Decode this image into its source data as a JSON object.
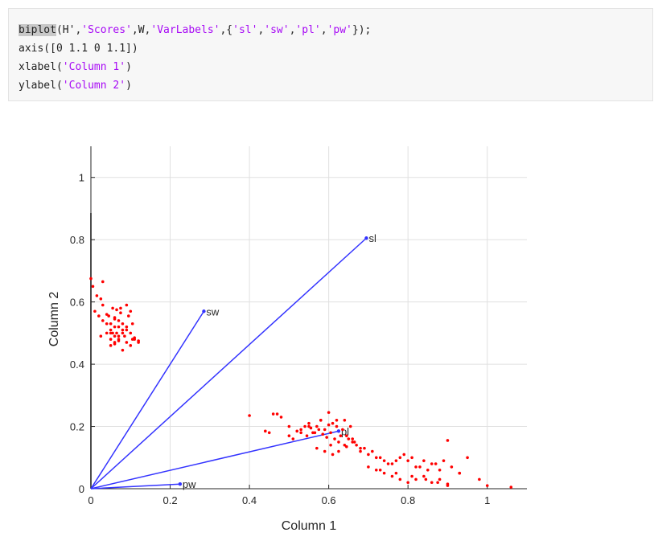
{
  "code": {
    "lines": [
      [
        {
          "t": "biplot",
          "k": "hl"
        },
        {
          "t": "(H',",
          "k": "plain"
        },
        {
          "t": "'Scores'",
          "k": "str"
        },
        {
          "t": ",W,",
          "k": "plain"
        },
        {
          "t": "'VarLabels'",
          "k": "str"
        },
        {
          "t": ",{",
          "k": "plain"
        },
        {
          "t": "'sl'",
          "k": "str"
        },
        {
          "t": ",",
          "k": "plain"
        },
        {
          "t": "'sw'",
          "k": "str"
        },
        {
          "t": ",",
          "k": "plain"
        },
        {
          "t": "'pl'",
          "k": "str"
        },
        {
          "t": ",",
          "k": "plain"
        },
        {
          "t": "'pw'",
          "k": "str"
        },
        {
          "t": "});",
          "k": "plain"
        }
      ],
      [
        {
          "t": "axis([0 1.1 0 1.1])",
          "k": "plain"
        }
      ],
      [
        {
          "t": "xlabel(",
          "k": "plain"
        },
        {
          "t": "'Column 1'",
          "k": "str"
        },
        {
          "t": ")",
          "k": "plain"
        }
      ],
      [
        {
          "t": "ylabel(",
          "k": "plain"
        },
        {
          "t": "'Column 2'",
          "k": "str"
        },
        {
          "t": ")",
          "k": "plain"
        }
      ]
    ]
  },
  "chart_data": {
    "type": "scatter",
    "title": "",
    "xlabel": "Column 1",
    "ylabel": "Column 2",
    "xlim": [
      0,
      1.1
    ],
    "ylim": [
      0,
      1.1
    ],
    "xticks": [
      0,
      0.2,
      0.4,
      0.6,
      0.8,
      1
    ],
    "yticks": [
      0,
      0.2,
      0.4,
      0.6,
      0.8,
      1
    ],
    "xtick_labels": [
      "0",
      "0.2",
      "0.4",
      "0.6",
      "0.8",
      "1"
    ],
    "ytick_labels": [
      "0",
      "0.2",
      "0.4",
      "0.6",
      "0.8",
      "1"
    ],
    "grid": true,
    "colors": {
      "vectors": "#3333ff",
      "scores": "#ff0000",
      "axes": "#262626",
      "grid": "#e0e0e0",
      "text": "#262626"
    },
    "vectors": [
      {
        "name": "sl",
        "x": 0.695,
        "y": 0.805
      },
      {
        "name": "sw",
        "x": 0.285,
        "y": 0.57
      },
      {
        "name": "pl",
        "x": 0.625,
        "y": 0.185
      },
      {
        "name": "pw",
        "x": 0.225,
        "y": 0.015
      }
    ],
    "scores": {
      "x": [
        0.0,
        0.005,
        0.01,
        0.025,
        0.03,
        0.015,
        0.02,
        0.03,
        0.04,
        0.045,
        0.05,
        0.055,
        0.06,
        0.065,
        0.05,
        0.06,
        0.07,
        0.075,
        0.03,
        0.04,
        0.05,
        0.06,
        0.07,
        0.08,
        0.09,
        0.04,
        0.05,
        0.06,
        0.065,
        0.07,
        0.08,
        0.085,
        0.09,
        0.1,
        0.105,
        0.11,
        0.05,
        0.06,
        0.07,
        0.08,
        0.09,
        0.1,
        0.11,
        0.12,
        0.025,
        0.06,
        0.075,
        0.09,
        0.1,
        0.105,
        0.095,
        0.08,
        0.07,
        0.055,
        0.12,
        0.4,
        0.44,
        0.46,
        0.47,
        0.48,
        0.5,
        0.51,
        0.52,
        0.53,
        0.54,
        0.55,
        0.56,
        0.57,
        0.58,
        0.59,
        0.6,
        0.61,
        0.62,
        0.63,
        0.64,
        0.65,
        0.53,
        0.545,
        0.555,
        0.565,
        0.575,
        0.585,
        0.595,
        0.605,
        0.615,
        0.625,
        0.635,
        0.645,
        0.655,
        0.665,
        0.6,
        0.62,
        0.64,
        0.66,
        0.68,
        0.7,
        0.72,
        0.74,
        0.76,
        0.78,
        0.8,
        0.82,
        0.84,
        0.86,
        0.88,
        0.9,
        0.67,
        0.69,
        0.71,
        0.73,
        0.75,
        0.77,
        0.79,
        0.81,
        0.83,
        0.85,
        0.87,
        0.89,
        0.91,
        0.93,
        0.95,
        0.72,
        0.74,
        0.76,
        0.78,
        0.8,
        0.82,
        0.84,
        0.86,
        0.88,
        0.9,
        0.98,
        1.0,
        1.06,
        0.57,
        0.59,
        0.61,
        0.66,
        0.68,
        0.55,
        0.5,
        0.45,
        0.58,
        0.605,
        0.625,
        0.645,
        0.7,
        0.73,
        0.77,
        0.81,
        0.845,
        0.875,
        0.9,
        0.93
      ],
      "y": [
        0.675,
        0.65,
        0.57,
        0.61,
        0.665,
        0.62,
        0.555,
        0.59,
        0.56,
        0.555,
        0.53,
        0.58,
        0.55,
        0.575,
        0.51,
        0.545,
        0.52,
        0.565,
        0.54,
        0.53,
        0.5,
        0.52,
        0.54,
        0.51,
        0.52,
        0.5,
        0.48,
        0.49,
        0.5,
        0.48,
        0.5,
        0.49,
        0.51,
        0.5,
        0.48,
        0.485,
        0.46,
        0.47,
        0.475,
        0.445,
        0.47,
        0.46,
        0.48,
        0.475,
        0.49,
        0.465,
        0.58,
        0.59,
        0.57,
        0.53,
        0.555,
        0.53,
        0.49,
        0.5,
        0.47,
        0.235,
        0.185,
        0.24,
        0.24,
        0.23,
        0.17,
        0.16,
        0.185,
        0.19,
        0.2,
        0.21,
        0.18,
        0.2,
        0.22,
        0.19,
        0.245,
        0.21,
        0.2,
        0.17,
        0.22,
        0.16,
        0.18,
        0.17,
        0.195,
        0.18,
        0.19,
        0.175,
        0.165,
        0.18,
        0.16,
        0.15,
        0.19,
        0.17,
        0.2,
        0.15,
        0.205,
        0.22,
        0.14,
        0.16,
        0.12,
        0.11,
        0.1,
        0.09,
        0.08,
        0.1,
        0.09,
        0.07,
        0.09,
        0.08,
        0.06,
        0.155,
        0.14,
        0.13,
        0.12,
        0.1,
        0.08,
        0.09,
        0.11,
        0.1,
        0.07,
        0.06,
        0.08,
        0.09,
        0.07,
        0.05,
        0.1,
        0.06,
        0.05,
        0.04,
        0.03,
        0.02,
        0.03,
        0.04,
        0.02,
        0.03,
        0.01,
        0.03,
        0.01,
        0.005,
        0.13,
        0.12,
        0.11,
        0.15,
        0.13,
        0.2,
        0.2,
        0.18,
        0.22,
        0.14,
        0.12,
        0.135,
        0.07,
        0.06,
        0.05,
        0.04,
        0.03,
        0.02,
        0.015,
        0.05
      ]
    }
  }
}
